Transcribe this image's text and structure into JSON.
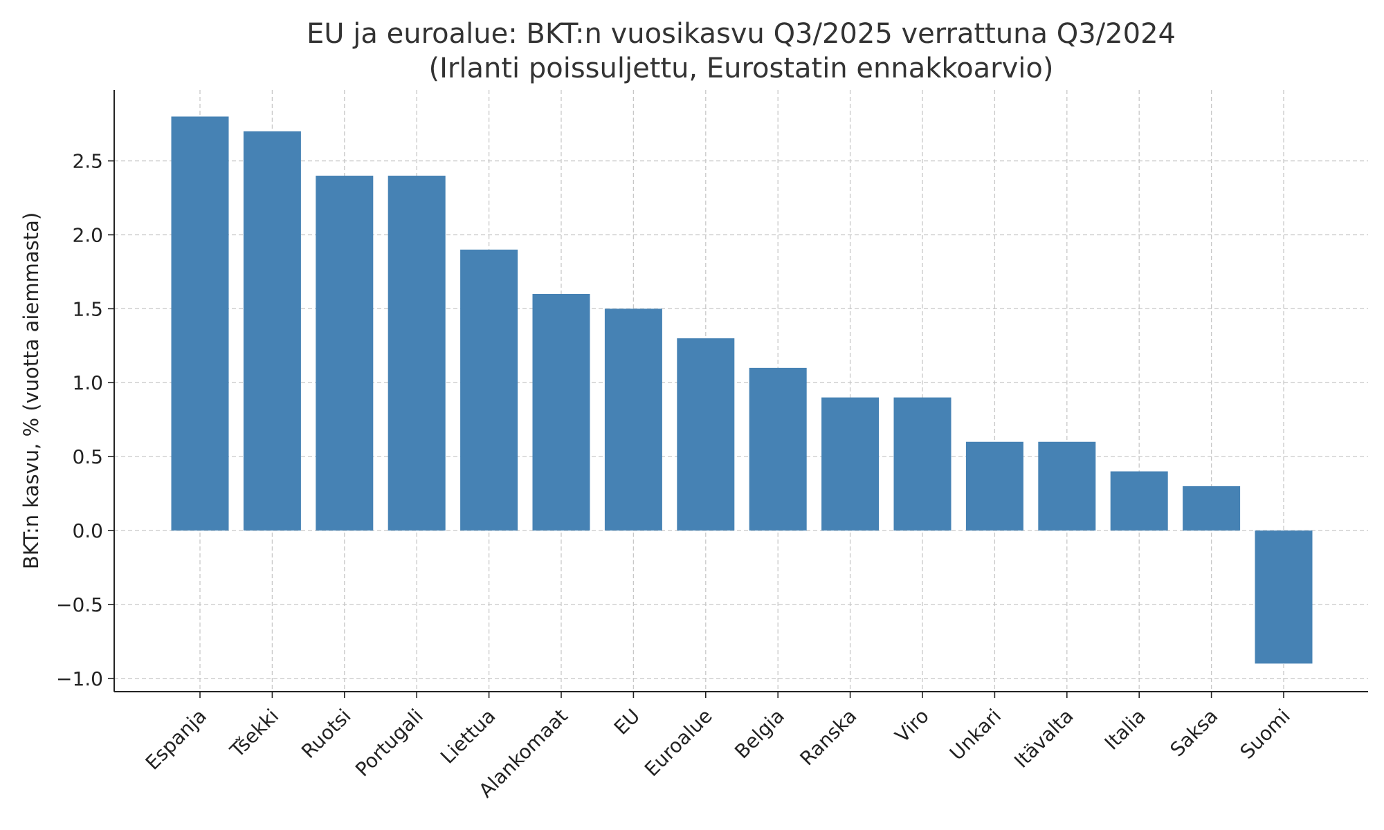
{
  "chart_data": {
    "type": "bar",
    "title": [
      "EU ja euroalue: BKT:n vuosikasvu Q3/2025 verrattuna Q3/2024",
      "(Irlanti poissuljettu, Eurostatin ennakkoarvio)"
    ],
    "xlabel": "",
    "ylabel": "BKT:n kasvu, % (vuotta aiemmasta)",
    "categories": [
      "Espanja",
      "Tšekki",
      "Ruotsi",
      "Portugali",
      "Liettua",
      "Alankomaat",
      "EU",
      "Euroalue",
      "Belgia",
      "Ranska",
      "Viro",
      "Unkari",
      "Itävalta",
      "Italia",
      "Saksa",
      "Suomi"
    ],
    "values": [
      2.8,
      2.7,
      2.4,
      2.4,
      1.9,
      1.6,
      1.5,
      1.3,
      1.1,
      0.9,
      0.9,
      0.6,
      0.6,
      0.4,
      0.3,
      -0.9
    ],
    "ylim": [
      -1.09,
      2.98
    ],
    "yticks": [
      -1.0,
      -0.5,
      0.0,
      0.5,
      1.0,
      1.5,
      2.0,
      2.5
    ],
    "ytick_labels": [
      "−1.0",
      "−0.5",
      "0.0",
      "0.5",
      "1.0",
      "1.5",
      "2.0",
      "2.5"
    ],
    "grid": true,
    "legend": "none",
    "bar_color": "#4682b4"
  }
}
